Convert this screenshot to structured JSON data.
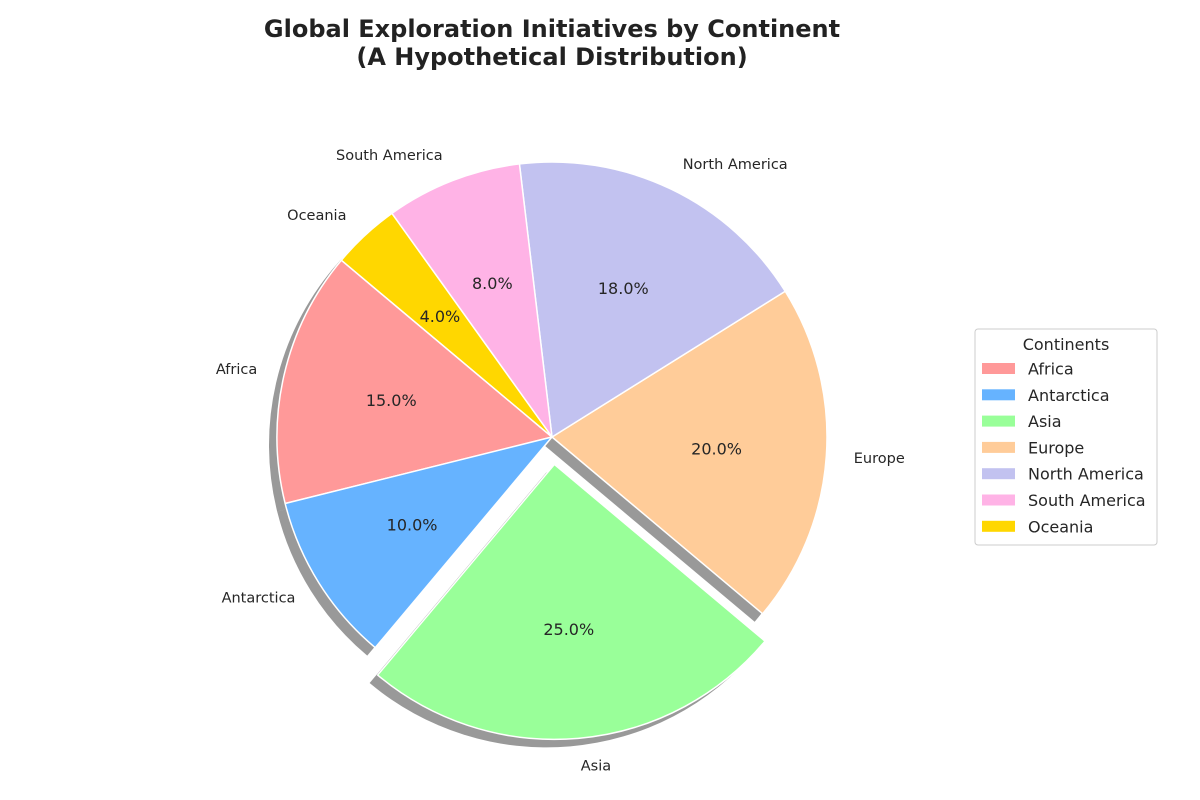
{
  "chart_data": {
    "type": "pie",
    "title_lines": [
      "Global Exploration Initiatives by Continent",
      "(A Hypothetical Distribution)"
    ],
    "categories": [
      "Africa",
      "Antarctica",
      "Asia",
      "Europe",
      "North America",
      "South America",
      "Oceania"
    ],
    "values": [
      15,
      10,
      25,
      20,
      18,
      8,
      4
    ],
    "percent_labels": [
      "15.0%",
      "10.0%",
      "25.0%",
      "20.0%",
      "18.0%",
      "8.0%",
      "4.0%"
    ],
    "colors": [
      "#ff9999",
      "#66b3ff",
      "#99ff99",
      "#ffcc99",
      "#c2c2f0",
      "#ffb3e6",
      "#ffd700"
    ],
    "exploded": [
      "Asia"
    ],
    "shadow": true,
    "start_angle_deg": 140,
    "direction": "counterclockwise",
    "legend": {
      "title": "Continents",
      "placement": "center-right"
    }
  }
}
